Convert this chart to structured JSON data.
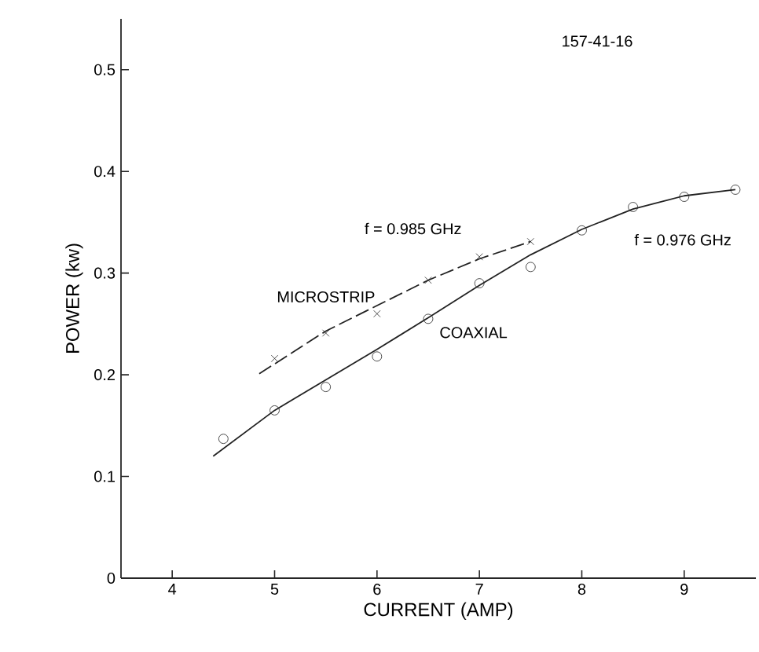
{
  "chart_data": {
    "type": "line",
    "xlabel": "CURRENT (AMP)",
    "ylabel": "POWER (kw)",
    "xlim": [
      3.5,
      9.7
    ],
    "ylim": [
      0,
      0.55
    ],
    "xticks": [
      4,
      5,
      6,
      7,
      8,
      9
    ],
    "yticks": [
      0,
      0.1,
      0.2,
      0.3,
      0.4,
      0.5
    ],
    "grid": false,
    "annotations": [
      "157-41-16",
      "f = 0.985 GHz",
      "f = 0.976 GHz"
    ],
    "series": [
      {
        "name": "MICROSTRIP",
        "type": "scatter",
        "marker": "cross",
        "color": "#222222",
        "x": [
          5,
          5.5,
          6,
          6.5,
          7,
          7.5
        ],
        "values": [
          0.216,
          0.241,
          0.26,
          0.293,
          0.316,
          0.331
        ]
      },
      {
        "name": "COAXIAL",
        "type": "scatter",
        "marker": "circle",
        "color": "#222222",
        "x": [
          4.5,
          5,
          5.5,
          6,
          6.5,
          7,
          7.5,
          8,
          8.5,
          9,
          9.5
        ],
        "values": [
          0.137,
          0.165,
          0.188,
          0.218,
          0.255,
          0.29,
          0.306,
          0.342,
          0.365,
          0.375,
          0.382
        ]
      },
      {
        "line_style": "dashed",
        "color": "#222222",
        "x": [
          4.85,
          5.5,
          6,
          6.5,
          7,
          7.5
        ],
        "values": [
          0.201,
          0.243,
          0.268,
          0.293,
          0.314,
          0.331
        ]
      },
      {
        "line_style": "solid",
        "color": "#222222",
        "x": [
          4.4,
          5,
          5.5,
          6,
          6.5,
          7,
          7.5,
          8,
          8.5,
          9,
          9.5
        ],
        "values": [
          0.12,
          0.165,
          0.195,
          0.225,
          0.256,
          0.288,
          0.318,
          0.343,
          0.363,
          0.376,
          0.382
        ]
      }
    ]
  }
}
